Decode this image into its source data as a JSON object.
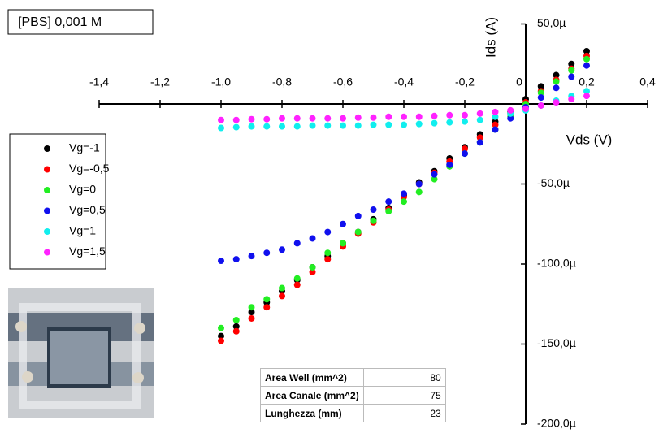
{
  "chart_data": {
    "type": "scatter",
    "title": "[PBS] 0,001 M",
    "x_label": "Vds (V)",
    "y_label": "Ids (A)",
    "xlim": [
      -1.4,
      0.4
    ],
    "xticks": [
      {
        "value": -1.4,
        "label": "-1,4"
      },
      {
        "value": -1.2,
        "label": "-1,2"
      },
      {
        "value": -1.0,
        "label": "-1,0"
      },
      {
        "value": -0.8,
        "label": "-0,8"
      },
      {
        "value": -0.6,
        "label": "-0,6"
      },
      {
        "value": -0.4,
        "label": "-0,4"
      },
      {
        "value": -0.2,
        "label": "-0,2"
      },
      0,
      {
        "value": 0.2,
        "label": "0,2"
      },
      {
        "value": 0.4,
        "label": "0,4"
      }
    ],
    "ylim": [
      -0.0002,
      5e-05
    ],
    "yticks": [
      {
        "value": 5e-05,
        "label": "50,0µ"
      },
      {
        "value": -5e-05,
        "label": "-50,0µ"
      },
      {
        "value": -0.0001,
        "label": "-100,0µ"
      },
      {
        "value": -0.00015,
        "label": "-150,0µ"
      },
      {
        "value": -0.0002,
        "label": "-200,0µ"
      }
    ],
    "x": [
      -1.0,
      -0.95,
      -0.9,
      -0.85,
      -0.8,
      -0.75,
      -0.7,
      -0.65,
      -0.6,
      -0.55,
      -0.5,
      -0.45,
      -0.4,
      -0.35,
      -0.3,
      -0.25,
      -0.2,
      -0.15,
      -0.1,
      -0.05,
      0.0,
      0.05,
      0.1,
      0.15,
      0.2
    ],
    "series": [
      {
        "name": "Vg=-1",
        "color": "#000000",
        "values": [
          -0.000145,
          -0.000139,
          -0.00013,
          -0.000124,
          -0.000117,
          -0.00011,
          -0.000102,
          -9.5e-05,
          -8.7e-05,
          -8e-05,
          -7.2e-05,
          -6.5e-05,
          -5.7e-05,
          -4.9e-05,
          -4.2e-05,
          -3.4e-05,
          -2.7e-05,
          -1.9e-05,
          -1.1e-05,
          -5e-06,
          3e-06,
          1.1e-05,
          1.8e-05,
          2.5e-05,
          3.3e-05
        ]
      },
      {
        "name": "Vg=-0,5",
        "color": "#ff0000",
        "values": [
          -0.000148,
          -0.000142,
          -0.000134,
          -0.000127,
          -0.00012,
          -0.000113,
          -0.000105,
          -9.7e-05,
          -8.9e-05,
          -8.1e-05,
          -7.4e-05,
          -6.6e-05,
          -5.8e-05,
          -5e-05,
          -4.3e-05,
          -3.6e-05,
          -2.8e-05,
          -2.1e-05,
          -1.3e-05,
          -6e-06,
          1e-06,
          8e-06,
          1.5e-05,
          2.2e-05,
          3e-05
        ]
      },
      {
        "name": "Vg=0",
        "color": "#22ee22",
        "values": [
          -0.00014,
          -0.000135,
          -0.000127,
          -0.000122,
          -0.000115,
          -0.000109,
          -0.000102,
          -9.3e-05,
          -8.7e-05,
          -8e-05,
          -7.3e-05,
          -6.7e-05,
          -6.1e-05,
          -5.5e-05,
          -4.7e-05,
          -3.9e-05,
          -3.1e-05,
          -2.4e-05,
          -1.6e-05,
          -8e-06,
          0,
          7e-06,
          1.4e-05,
          2.1e-05,
          2.8e-05
        ]
      },
      {
        "name": "Vg=0,5",
        "color": "#1010ee",
        "values": [
          -9.8e-05,
          -9.7e-05,
          -9.5e-05,
          -9.3e-05,
          -9.1e-05,
          -8.7e-05,
          -8.4e-05,
          -8e-05,
          -7.5e-05,
          -7e-05,
          -6.6e-05,
          -6.1e-05,
          -5.6e-05,
          -5e-05,
          -4.4e-05,
          -3.8e-05,
          -3.1e-05,
          -2.4e-05,
          -1.6e-05,
          -9e-06,
          -2e-06,
          4e-06,
          1e-05,
          1.7e-05,
          2.4e-05
        ]
      },
      {
        "name": "Vg=1",
        "color": "#11eeee",
        "values": [
          -1.5e-05,
          -1.45e-05,
          -1.4e-05,
          -1.4e-05,
          -1.4e-05,
          -1.4e-05,
          -1.35e-05,
          -1.35e-05,
          -1.35e-05,
          -1.35e-05,
          -1.3e-05,
          -1.3e-05,
          -1.3e-05,
          -1.25e-05,
          -1.2e-05,
          -1.15e-05,
          -1.1e-05,
          -1e-05,
          -8e-06,
          -6e-06,
          -4e-06,
          -1e-06,
          2e-06,
          5e-06,
          8e-06
        ]
      },
      {
        "name": "Vg=1,5",
        "color": "#ff22ff",
        "values": [
          -1e-05,
          -1e-05,
          -9.5e-06,
          -9.5e-06,
          -9e-06,
          -9e-06,
          -9e-06,
          -9e-06,
          -9e-06,
          -8.5e-06,
          -8.5e-06,
          -8e-06,
          -8e-06,
          -8e-06,
          -7.5e-06,
          -7e-06,
          -7e-06,
          -6e-06,
          -5e-06,
          -4e-06,
          -3e-06,
          -1e-06,
          1e-06,
          3e-06,
          5e-06
        ]
      }
    ]
  },
  "table": {
    "rows": [
      [
        "Area Well (mm^2)",
        80
      ],
      [
        "Area Canale (mm^2)",
        75
      ],
      [
        "Lunghezza (mm)",
        23
      ]
    ]
  }
}
